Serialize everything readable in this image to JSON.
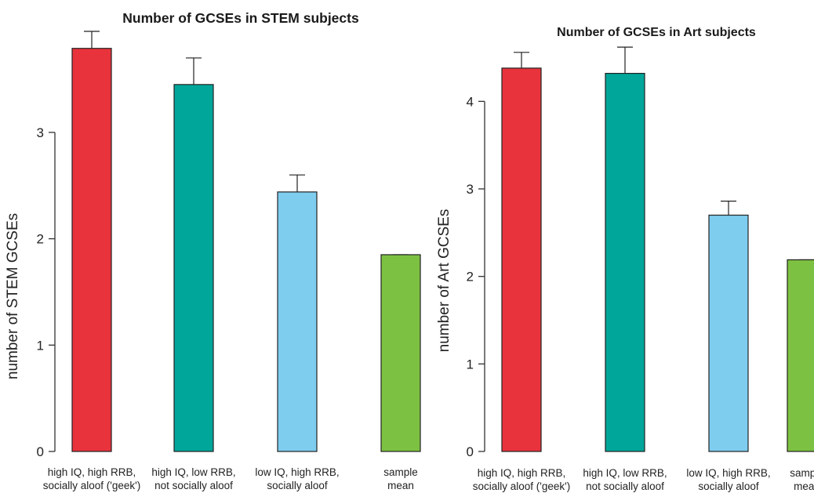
{
  "chart_data": [
    {
      "type": "bar",
      "title": "Number of GCSEs in STEM subjects",
      "xlabel": "",
      "ylabel": "number of STEM GCSEs",
      "ylim": [
        0,
        3.95
      ],
      "yticks": [
        0,
        1,
        2,
        3
      ],
      "categories": [
        [
          "high IQ, high RRB,",
          "socially aloof ('geek')"
        ],
        [
          "high IQ, low RRB,",
          "not socially aloof"
        ],
        [
          "low IQ, high RRB,",
          "socially aloof"
        ],
        [
          "sample",
          "mean"
        ]
      ],
      "values": [
        3.79,
        3.45,
        2.44,
        1.85
      ],
      "errors": [
        0.16,
        0.25,
        0.16,
        0.0
      ],
      "colors": [
        "#e8333c",
        "#00a69a",
        "#7ecdee",
        "#7dc142"
      ],
      "grid": false,
      "legend": "none"
    },
    {
      "type": "bar",
      "title": "Number of GCSEs in Art subjects",
      "xlabel": "",
      "ylabel": "number of Art GCSEs",
      "ylim": [
        0,
        4.8
      ],
      "yticks": [
        0,
        1,
        2,
        3,
        4
      ],
      "categories": [
        [
          "high IQ, high RRB,",
          "socially aloof ('geek')"
        ],
        [
          "high IQ, low RRB,",
          "not socially aloof"
        ],
        [
          "low IQ, high RRB,",
          "socially aloof"
        ],
        [
          "sample",
          "mean"
        ]
      ],
      "values": [
        4.38,
        4.32,
        2.7,
        2.19
      ],
      "errors": [
        0.18,
        0.3,
        0.16,
        0.0
      ],
      "colors": [
        "#e8333c",
        "#00a69a",
        "#7ecdee",
        "#7dc142"
      ],
      "grid": false,
      "legend": "none"
    }
  ]
}
